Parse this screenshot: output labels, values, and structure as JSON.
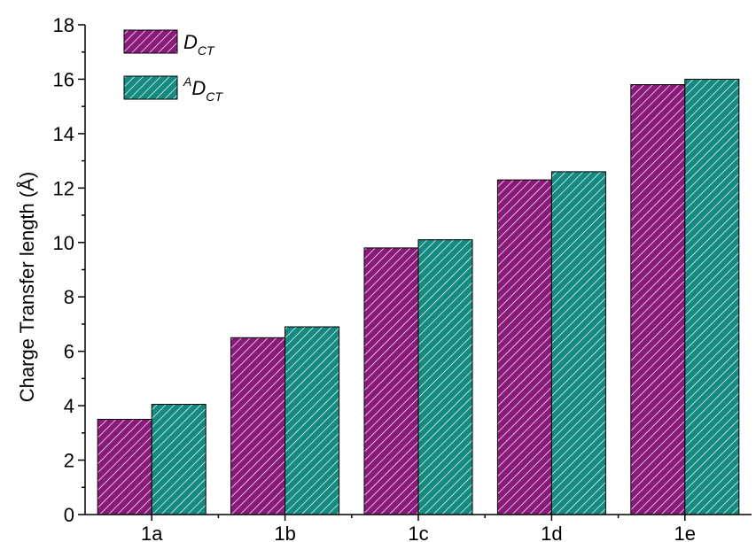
{
  "chart_data": {
    "type": "bar",
    "categories": [
      "1a",
      "1b",
      "1c",
      "1d",
      "1e"
    ],
    "series": [
      {
        "name": "D_CT",
        "legend_main": "D",
        "legend_sub": "CT",
        "legend_sup": "",
        "color": "#8a1a7a",
        "values": [
          3.5,
          6.5,
          9.8,
          12.3,
          15.8
        ]
      },
      {
        "name": "^A D_CT",
        "legend_main": "D",
        "legend_sub": "CT",
        "legend_sup": "A",
        "color": "#158a80",
        "values": [
          4.05,
          6.9,
          10.1,
          12.6,
          16.0
        ]
      }
    ],
    "xlabel": "",
    "ylabel": "Charge Transfer length (Å)",
    "ylim": [
      0,
      18
    ],
    "yticks": [
      "0",
      "2",
      "4",
      "6",
      "8",
      "10",
      "12",
      "14",
      "16",
      "18"
    ],
    "hatch": "diagonal",
    "grid": false,
    "legend_position": "top-left"
  }
}
